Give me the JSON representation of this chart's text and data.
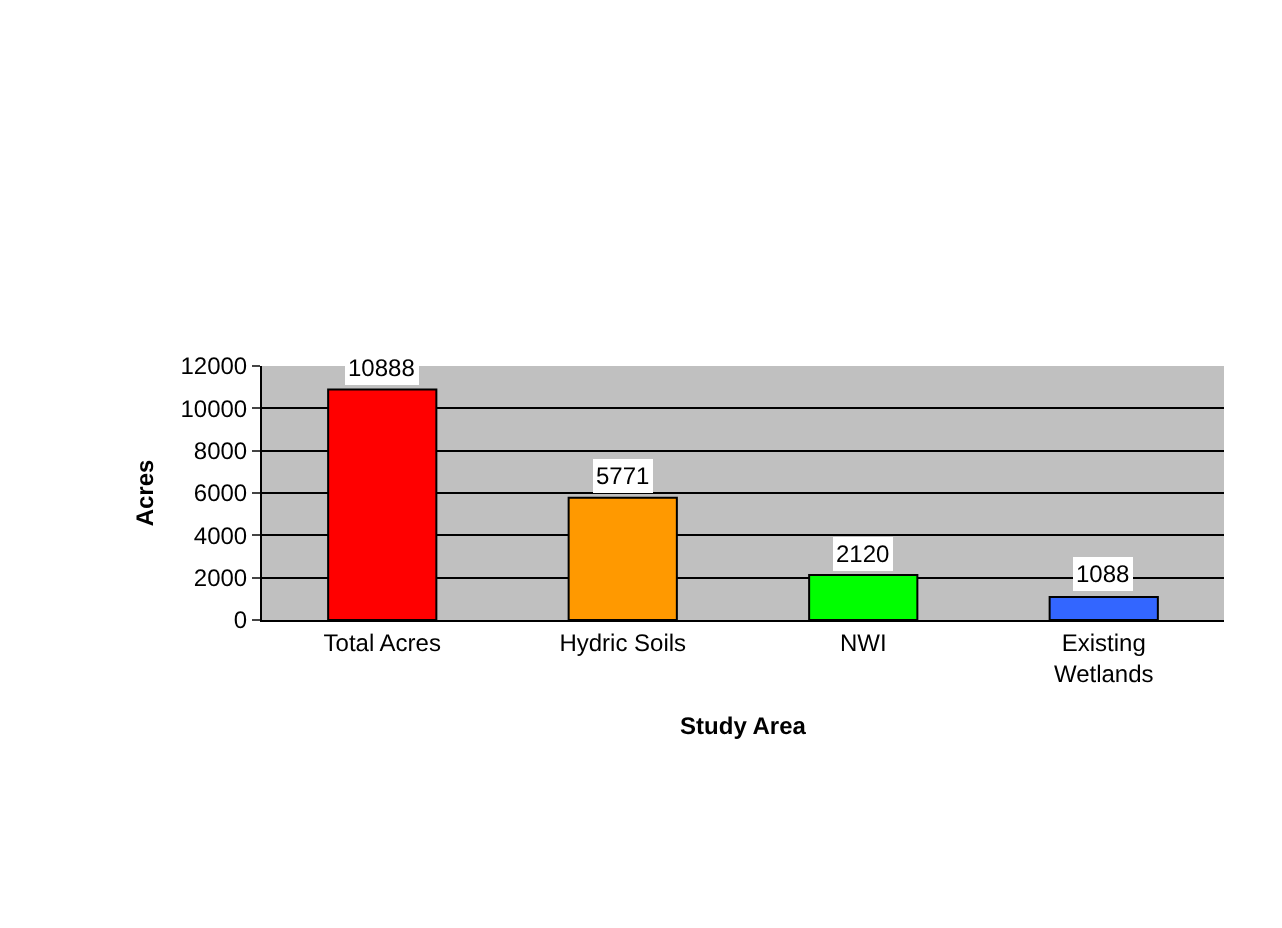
{
  "chart_data": {
    "type": "bar",
    "xlabel": "Study Area",
    "ylabel": "Acres",
    "categories": [
      "Total Acres",
      "Hydric Soils",
      "NWI",
      "Existing Wetlands"
    ],
    "values": [
      10888,
      5771,
      2120,
      1088
    ],
    "colors": [
      "#ff0000",
      "#ff9900",
      "#00ff00",
      "#3366ff"
    ],
    "ylim": [
      0,
      12000
    ],
    "yticks": [
      0,
      2000,
      4000,
      6000,
      8000,
      10000,
      12000
    ],
    "grid": "y",
    "data_labels": true
  }
}
